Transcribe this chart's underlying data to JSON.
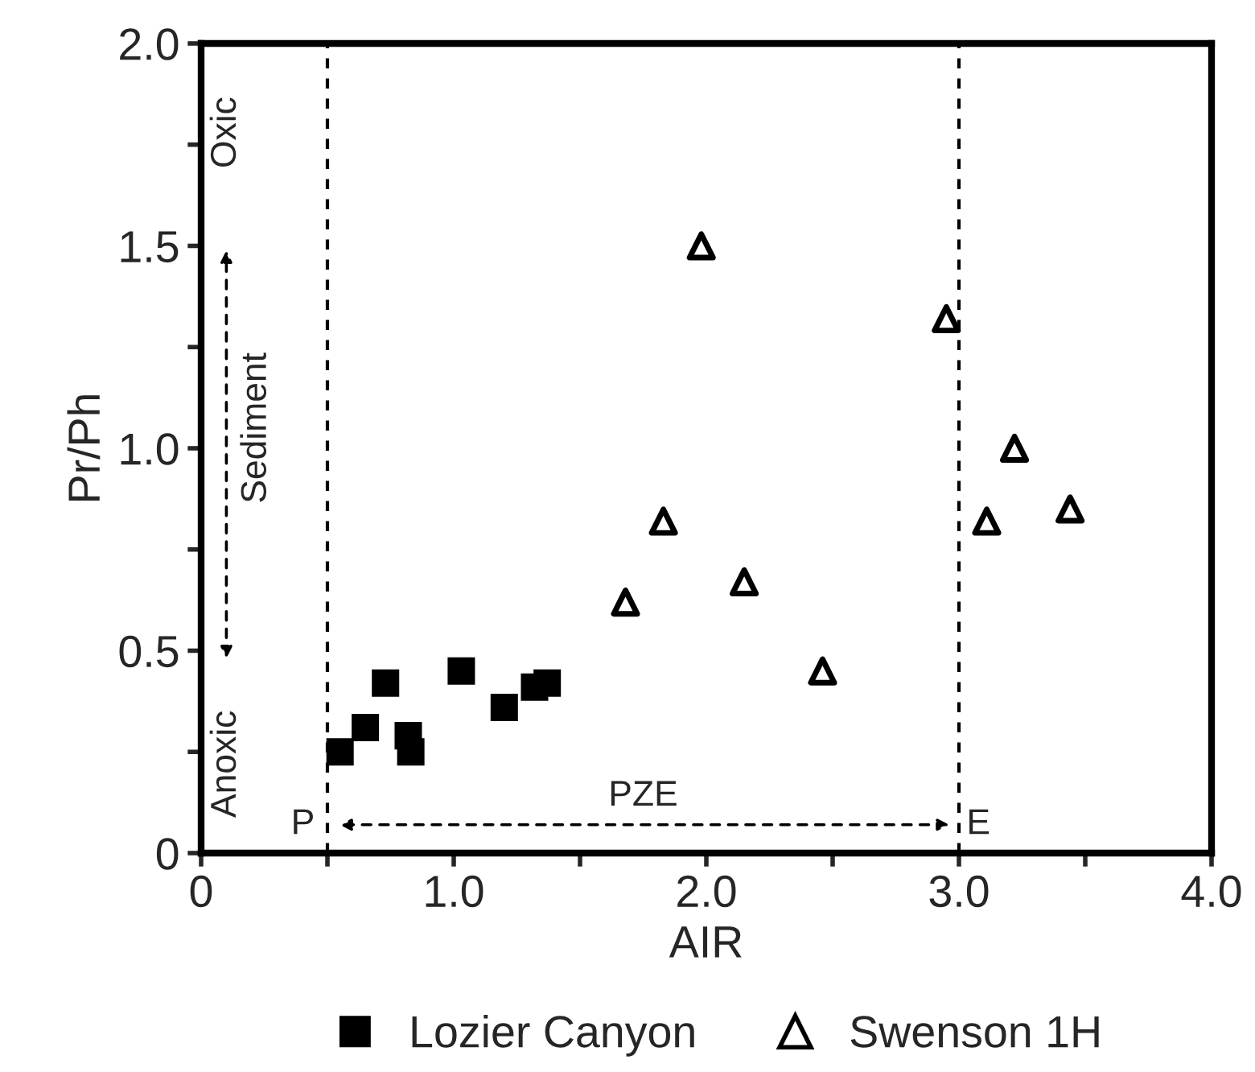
{
  "chart_data": {
    "type": "scatter",
    "xlabel": "AIR",
    "ylabel": "Pr/Ph",
    "xlim": [
      0,
      4
    ],
    "ylim": [
      0,
      2
    ],
    "xticks": [
      0,
      {
        "value": 0.5,
        "label": null
      },
      {
        "value": 1,
        "label": "1.0"
      },
      {
        "value": 1.5,
        "label": null
      },
      {
        "value": 2,
        "label": "2.0"
      },
      {
        "value": 2.5,
        "label": null
      },
      {
        "value": 3,
        "label": "3.0"
      },
      {
        "value": 3.5,
        "label": null
      },
      {
        "value": 4,
        "label": "4.0"
      }
    ],
    "yticks": [
      0,
      {
        "value": 0.25,
        "label": null
      },
      0.5,
      {
        "value": 0.75,
        "label": null
      },
      {
        "value": 1,
        "label": "1.0"
      },
      {
        "value": 1.25,
        "label": null
      },
      1.5,
      {
        "value": 1.75,
        "label": null
      },
      {
        "value": 2,
        "label": "2.0"
      }
    ],
    "series": [
      {
        "name": "Lozier Canyon",
        "color": "#000000",
        "marker": "square",
        "x": [
          0.55,
          0.65,
          0.73,
          0.82,
          0.83,
          1.03,
          1.2,
          1.32,
          1.37
        ],
        "values": [
          0.25,
          0.31,
          0.42,
          0.29,
          0.25,
          0.45,
          0.36,
          0.41,
          0.42
        ]
      },
      {
        "name": "Swenson 1H",
        "color": "#000000",
        "marker": "triangle",
        "x": [
          1.68,
          1.83,
          1.98,
          2.15,
          2.46,
          2.95,
          3.11,
          3.22,
          3.44
        ],
        "values": [
          0.62,
          0.82,
          1.5,
          0.67,
          0.45,
          1.32,
          0.82,
          1.0,
          0.85
        ]
      }
    ],
    "ref_lines": [
      {
        "axis": "x",
        "value": 0.5,
        "line_style": "dashed",
        "color": "#000000"
      },
      {
        "axis": "x",
        "value": 3.0,
        "line_style": "dashed",
        "color": "#000000"
      }
    ],
    "annotations": [
      "Oxic",
      "Sediment",
      "Anoxic",
      "P",
      "PZE",
      "E"
    ],
    "grid": false,
    "legend": "bottom"
  }
}
